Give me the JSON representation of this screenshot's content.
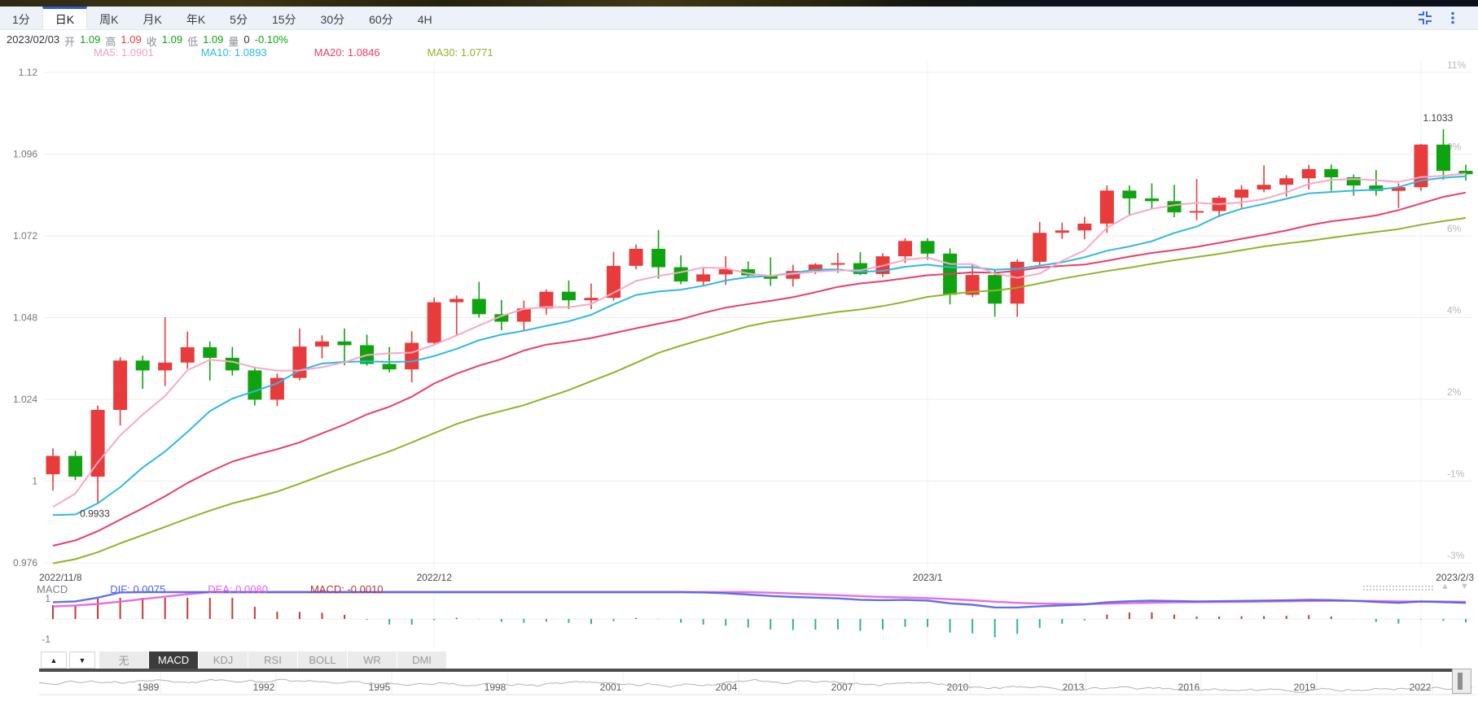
{
  "toolbar": {
    "tabs": [
      {
        "label": "1分",
        "active": false
      },
      {
        "label": "日K",
        "active": true
      },
      {
        "label": "周K",
        "active": false
      },
      {
        "label": "月K",
        "active": false
      },
      {
        "label": "年K",
        "active": false
      },
      {
        "label": "5分",
        "active": false
      },
      {
        "label": "15分",
        "active": false
      },
      {
        "label": "30分",
        "active": false
      },
      {
        "label": "60分",
        "active": false
      },
      {
        "label": "4H",
        "active": false
      }
    ]
  },
  "info_bar": {
    "date": "2023/02/03",
    "open_label": "开",
    "open": "1.09",
    "high_label": "高",
    "high": "1.09",
    "close_label": "收",
    "close": "1.09",
    "low_label": "低",
    "low": "1.09",
    "volume_label": "量",
    "volume": "0",
    "change": "-0.10%"
  },
  "ma_bar": {
    "ma5": "MA5: 1.0901",
    "ma10": "MA10: 1.0893",
    "ma20": "MA20: 1.0846",
    "ma30": "MA30: 1.0771"
  },
  "macd_bar": {
    "title": "MACD",
    "dif": "DIF: 0.0075",
    "dea": "DEA: 0.0080",
    "macd": "MACD: -0.0010"
  },
  "indicator_tabs": {
    "up": "▲",
    "down": "▼",
    "items": [
      {
        "label": "无",
        "active": false
      },
      {
        "label": "MACD",
        "active": true
      },
      {
        "label": "KDJ",
        "active": false
      },
      {
        "label": "RSI",
        "active": false
      },
      {
        "label": "BOLL",
        "active": false
      },
      {
        "label": "WR",
        "active": false
      },
      {
        "label": "DMI",
        "active": false
      }
    ]
  },
  "axis_controls": {
    "scroll_left": "▲",
    "scroll_right": "▼"
  },
  "navigator": {
    "years": [
      "1989",
      "1992",
      "1995",
      "1998",
      "2001",
      "2004",
      "2007",
      "2010",
      "2013",
      "2016",
      "2019",
      "2022"
    ]
  },
  "chart_data": {
    "type": "candlestick",
    "instrument_hint": "",
    "ylim": [
      0.976,
      1.12
    ],
    "y_axis_left": [
      "1.12",
      "1.096",
      "1.072",
      "1.048",
      "1.024",
      "1",
      "0.976"
    ],
    "y_axis_right": [
      "11%",
      "9%",
      "6%",
      "4%",
      "2%",
      "-1%",
      "-3%"
    ],
    "x_labels": [
      {
        "label": "2022/11/8",
        "index": 0,
        "align": "left"
      },
      {
        "label": "2022/12",
        "index": 17,
        "align": "middle"
      },
      {
        "label": "2023/1",
        "index": 39,
        "align": "middle"
      },
      {
        "label": "2023/2/3",
        "index": 63,
        "align": "right"
      }
    ],
    "month_gridline_indices": [
      17,
      39,
      61
    ],
    "annotations": [
      {
        "text": "0.9933",
        "index": 2,
        "pos": "below-low"
      },
      {
        "text": "1.1033",
        "index": 62,
        "pos": "above-high"
      }
    ],
    "candles": [
      [
        1.002,
        1.0096,
        0.9972,
        1.0074
      ],
      [
        1.0074,
        1.0089,
        1.0003,
        1.0013
      ],
      [
        1.0013,
        1.0222,
        0.9933,
        1.0209
      ],
      [
        1.0209,
        1.0364,
        1.0163,
        1.0354
      ],
      [
        1.0354,
        1.0368,
        1.0271,
        1.0325
      ],
      [
        1.0325,
        1.0481,
        1.0279,
        1.0348
      ],
      [
        1.0348,
        1.0439,
        1.033,
        1.0393
      ],
      [
        1.0393,
        1.041,
        1.0295,
        1.0362
      ],
      [
        1.0362,
        1.0394,
        1.031,
        1.0325
      ],
      [
        1.0325,
        1.0332,
        1.0222,
        1.0239
      ],
      [
        1.0239,
        1.0316,
        1.022,
        1.0303
      ],
      [
        1.0303,
        1.0448,
        1.0296,
        1.0395
      ],
      [
        1.0395,
        1.0428,
        1.036,
        1.041
      ],
      [
        1.041,
        1.0448,
        1.034,
        1.0399
      ],
      [
        1.0399,
        1.043,
        1.0339,
        1.0344
      ],
      [
        1.0344,
        1.0394,
        1.0319,
        1.0328
      ],
      [
        1.0328,
        1.044,
        1.029,
        1.0406
      ],
      [
        1.0406,
        1.0539,
        1.04,
        1.0525
      ],
      [
        1.0525,
        1.0545,
        1.0427,
        1.0535
      ],
      [
        1.0535,
        1.0585,
        1.048,
        1.049
      ],
      [
        1.049,
        1.0532,
        1.0443,
        1.0468
      ],
      [
        1.0468,
        1.053,
        1.0442,
        1.0507
      ],
      [
        1.0507,
        1.0563,
        1.0489,
        1.0556
      ],
      [
        1.0556,
        1.0589,
        1.0505,
        1.0531
      ],
      [
        1.0531,
        1.058,
        1.0505,
        1.0538
      ],
      [
        1.0538,
        1.0673,
        1.053,
        1.0632
      ],
      [
        1.0632,
        1.0695,
        1.0622,
        1.0682
      ],
      [
        1.0682,
        1.0737,
        1.0594,
        1.0628
      ],
      [
        1.0628,
        1.0663,
        1.0578,
        1.0586
      ],
      [
        1.0586,
        1.0625,
        1.0575,
        1.0607
      ],
      [
        1.0607,
        1.066,
        1.0576,
        1.0622
      ],
      [
        1.0622,
        1.0645,
        1.0598,
        1.0604
      ],
      [
        1.0604,
        1.0657,
        1.0573,
        1.0594
      ],
      [
        1.0594,
        1.0635,
        1.0571,
        1.0617
      ],
      [
        1.0617,
        1.064,
        1.0608,
        1.0636
      ],
      [
        1.0636,
        1.067,
        1.0611,
        1.064
      ],
      [
        1.064,
        1.0672,
        1.0605,
        1.0608
      ],
      [
        1.0608,
        1.0669,
        1.0599,
        1.066
      ],
      [
        1.066,
        1.0713,
        1.064,
        1.0705
      ],
      [
        1.0705,
        1.0713,
        1.065,
        1.0668
      ],
      [
        1.0668,
        1.0683,
        1.0519,
        1.0547
      ],
      [
        1.0547,
        1.0637,
        1.054,
        1.0605
      ],
      [
        1.0605,
        1.0622,
        1.0483,
        1.0521
      ],
      [
        1.0521,
        1.0651,
        1.0482,
        1.0644
      ],
      [
        1.0644,
        1.0761,
        1.0634,
        1.0729
      ],
      [
        1.0729,
        1.0759,
        1.0711,
        1.0736
      ],
      [
        1.0736,
        1.0776,
        1.071,
        1.0756
      ],
      [
        1.0756,
        1.0868,
        1.0729,
        1.0853
      ],
      [
        1.0853,
        1.0868,
        1.0779,
        1.083
      ],
      [
        1.083,
        1.0874,
        1.08,
        1.0822
      ],
      [
        1.0822,
        1.087,
        1.0775,
        1.0789
      ],
      [
        1.0789,
        1.0887,
        1.0766,
        1.0793
      ],
      [
        1.0793,
        1.0838,
        1.0775,
        1.0832
      ],
      [
        1.0832,
        1.0869,
        1.0802,
        1.0856
      ],
      [
        1.0856,
        1.0927,
        1.0848,
        1.087
      ],
      [
        1.087,
        1.0898,
        1.0835,
        1.0889
      ],
      [
        1.0889,
        1.0929,
        1.0856,
        1.0916
      ],
      [
        1.0916,
        1.093,
        1.0852,
        1.0892
      ],
      [
        1.0892,
        1.09,
        1.0838,
        1.0868
      ],
      [
        1.0868,
        1.0913,
        1.0838,
        1.0852
      ],
      [
        1.0852,
        1.0874,
        1.0802,
        1.0863
      ],
      [
        1.0863,
        1.099,
        1.0852,
        1.0988
      ],
      [
        1.0988,
        1.1033,
        1.0885,
        1.0911
      ],
      [
        1.0911,
        1.0929,
        1.0882,
        1.0901
      ]
    ],
    "ma_seeds": [
      0.963,
      0.9648,
      0.959,
      0.9575,
      0.9601,
      0.9622,
      0.9655,
      0.9668,
      0.969,
      0.9742,
      0.9761,
      0.9699,
      0.9668,
      0.9679,
      0.966,
      0.9636,
      0.9616,
      0.9696,
      0.9735,
      0.9851,
      0.9962,
      0.9995,
      0.9882,
      0.988,
      0.975,
      0.9876,
      0.9817,
      0.9751,
      0.9958,
      1.002
    ],
    "macd_axis": {
      "top": "1",
      "bottom": "-1"
    },
    "macd_values": {
      "dif": 0.0075,
      "dea": 0.008,
      "macd": -0.001
    },
    "series_colors": {
      "up": "#e83b3c",
      "down": "#10a310",
      "ma5": "#f7a8c6",
      "ma10": "#2eb8e6",
      "ma20": "#ea3d68",
      "ma30": "#8fb428",
      "dif": "#4f63e8",
      "dea": "#e85ce0",
      "hist_pos": "#c43a2f",
      "hist_neg": "#2bb39b",
      "grid": "#ededed",
      "axis_text": "#757575",
      "axis_text_right": "#b9b9b9",
      "nav_line": "#b3b3b3"
    }
  }
}
